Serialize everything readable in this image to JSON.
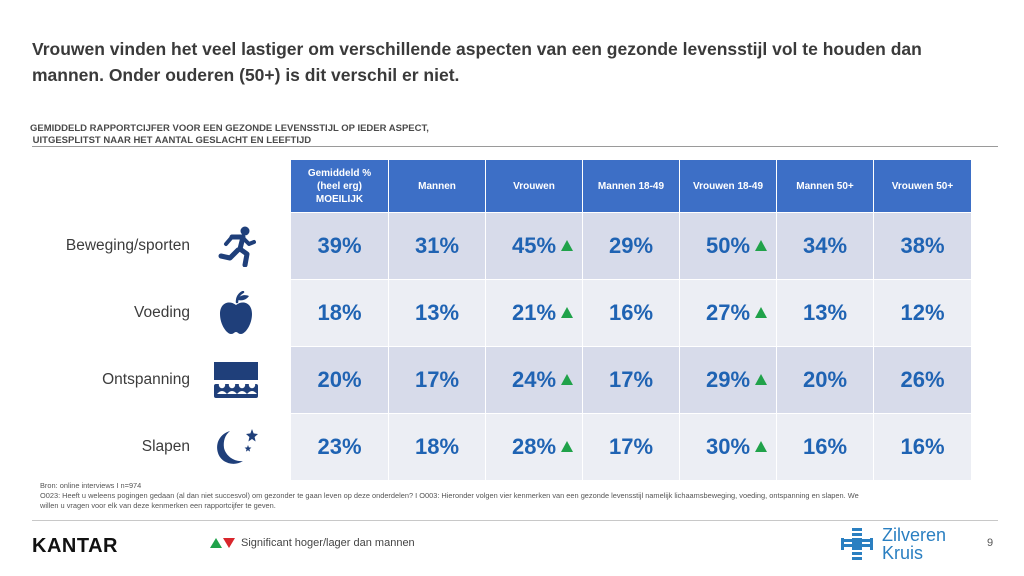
{
  "title": "Vrouwen vinden het veel lastiger om verschillende aspecten van een gezonde levensstijl vol te houden dan mannen. Onder ouderen (50+) is dit verschil er niet.",
  "subtitle_line1": "GEMIDDELD RAPPORTCIJFER VOOR EEN GEZONDE LEVENSSTIJL OP IEDER ASPECT,",
  "subtitle_line2": " UITGESPLITST NAAR HET AANTAL GESLACHT EN LEEFTIJD",
  "chart_data": {
    "type": "table",
    "columns": [
      "Gemiddeld % (heel erg) MOEILIJK",
      "Mannen",
      "Vrouwen",
      "Mannen 18-49",
      "Vrouwen 18-49",
      "Mannen 50+",
      "Vrouwen 50+"
    ],
    "rows": [
      {
        "label": "Beweging/sporten",
        "icon": "running-person-icon",
        "values": [
          "39%",
          "31%",
          "45%",
          "29%",
          "50%",
          "34%",
          "38%"
        ],
        "significant_higher": [
          false,
          false,
          true,
          false,
          true,
          false,
          false
        ]
      },
      {
        "label": "Voeding",
        "icon": "apple-icon",
        "values": [
          "18%",
          "13%",
          "21%",
          "16%",
          "27%",
          "13%",
          "12%"
        ],
        "significant_higher": [
          false,
          false,
          true,
          false,
          true,
          false,
          false
        ]
      },
      {
        "label": "Ontspanning",
        "icon": "cinema-audience-icon",
        "values": [
          "20%",
          "17%",
          "24%",
          "17%",
          "29%",
          "20%",
          "26%"
        ],
        "significant_higher": [
          false,
          false,
          true,
          false,
          true,
          false,
          false
        ]
      },
      {
        "label": "Slapen",
        "icon": "moon-stars-icon",
        "values": [
          "23%",
          "18%",
          "28%",
          "17%",
          "30%",
          "16%",
          "16%"
        ],
        "significant_higher": [
          false,
          false,
          true,
          false,
          true,
          false,
          false
        ]
      }
    ]
  },
  "source_line1": "Bron: online interviews I n=974",
  "source_line2": "O023: Heeft u weleens pogingen gedaan (al dan niet succesvol) om gezonder te gaan leven op deze onderdelen? I O003: Hieronder volgen vier kenmerken van een gezonde levensstijl namelijk lichaamsbeweging, voeding, ontspanning en slapen. We",
  "source_line3": "willen u vragen voor elk van deze kenmerken een rapportcijfer te geven.",
  "footer": {
    "brand": "KANTAR",
    "legend_text": "Significant hoger/lager dan mannen",
    "logo_line1": "Zilveren",
    "logo_line2": "Kruis",
    "page_number": "9"
  },
  "colors": {
    "header_bg": "#3d6fc6",
    "value_text": "#1f63b3",
    "row_dark": "#d7dbea",
    "row_light": "#eceef4",
    "significant_up": "#20a24a",
    "significant_down": "#d9262c",
    "icon_color": "#1f3f7a"
  }
}
